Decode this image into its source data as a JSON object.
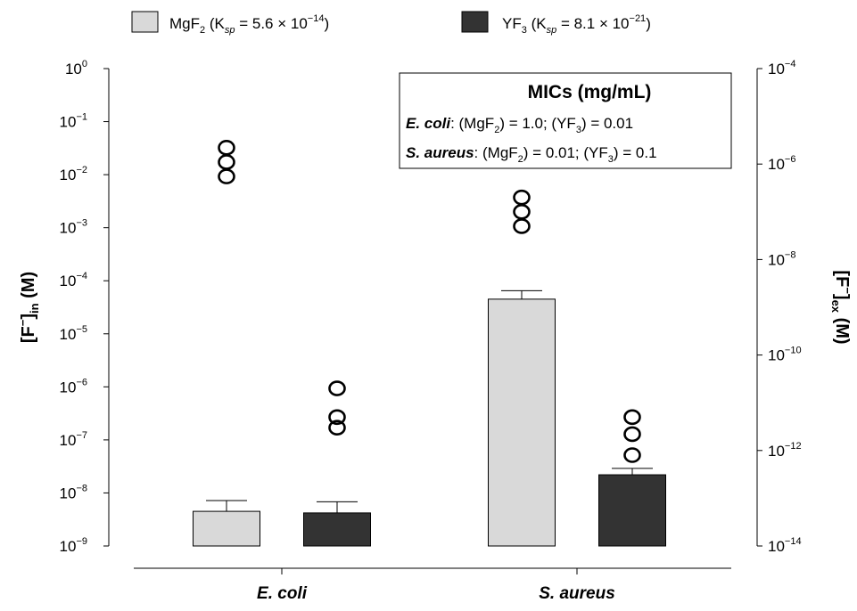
{
  "legend": [
    {
      "label": "MgF",
      "sub": "2",
      "ksp_text": "K",
      "ksp_sub": "sp",
      "value_text": " = 5.6 × 10",
      "exp": "−14",
      "color": "#d9d9d9"
    },
    {
      "label": "YF",
      "sub": "3",
      "ksp_text": "K",
      "ksp_sub": "sp",
      "value_text": " = 8.1 × 10",
      "exp": "−21",
      "color": "#333333"
    }
  ],
  "mic_box": {
    "title": "MICs (mg/mL)",
    "lines": [
      {
        "organism": "E. coli",
        "p1": ": (MgF",
        "s1": "2",
        "p2": ") = 1.0; (YF",
        "s2": "3",
        "p3": ") = 0.01"
      },
      {
        "organism": "S. aureus",
        "p1": ": (MgF",
        "s1": "2",
        "p2": ") = 0.01; (YF",
        "s2": "3",
        "p3": ") = 0.1"
      }
    ]
  },
  "left_axis_label": {
    "main": "[F",
    "sup": "−",
    "close": "]",
    "sub": "in",
    "unit": " (M)"
  },
  "right_axis_label": {
    "main": "[F",
    "sup": "−",
    "close": "]",
    "sub": "ex",
    "unit": " (M)"
  },
  "chart_data": {
    "type": "bar",
    "log_scale": true,
    "categories": [
      "E. coli",
      "S. aureus"
    ],
    "series": [
      {
        "name": "MgF2 (Ksp = 5.6 × 10−14)",
        "color": "#d9d9d9",
        "values": [
          4.5e-09,
          4.5e-05
        ],
        "error_upper": [
          7.2e-09,
          6.5e-05
        ],
        "ex_points": [
          [
            2.2e-06,
            1.1e-06,
            5.5e-07
          ],
          [
            2e-07,
            1e-07,
            5e-08
          ]
        ]
      },
      {
        "name": "YF3 (Ksp = 8.1 × 10−21)",
        "color": "#333333",
        "values": [
          4.2e-09,
          2.2e-08
        ],
        "error_upper": [
          6.8e-09,
          2.9e-08
        ],
        "ex_points": [
          [
            2e-11,
            5e-12,
            3e-12
          ],
          [
            5e-12,
            2.2e-12,
            8e-13
          ]
        ]
      }
    ],
    "y_left": {
      "min": 1e-09,
      "max": 1,
      "ticks": [
        {
          "v": 1,
          "base": "10",
          "exp": "0"
        },
        {
          "v": 0.1,
          "base": "10",
          "exp": "−1"
        },
        {
          "v": 0.01,
          "base": "10",
          "exp": "−2"
        },
        {
          "v": 0.001,
          "base": "10",
          "exp": "−3"
        },
        {
          "v": 0.0001,
          "base": "10",
          "exp": "−4"
        },
        {
          "v": 1e-05,
          "base": "10",
          "exp": "−5"
        },
        {
          "v": 1e-06,
          "base": "10",
          "exp": "−6"
        },
        {
          "v": 1e-07,
          "base": "10",
          "exp": "−7"
        },
        {
          "v": 1e-08,
          "base": "10",
          "exp": "−8"
        },
        {
          "v": 1e-09,
          "base": "10",
          "exp": "−9"
        }
      ]
    },
    "y_right": {
      "min": 1e-14,
      "max": 0.0001,
      "ticks": [
        {
          "v": 0.0001,
          "base": "10",
          "exp": "−4"
        },
        {
          "v": 1e-06,
          "base": "10",
          "exp": "−6"
        },
        {
          "v": 1e-08,
          "base": "10",
          "exp": "−8"
        },
        {
          "v": 1e-10,
          "base": "10",
          "exp": "−10"
        },
        {
          "v": 1e-12,
          "base": "10",
          "exp": "−12"
        },
        {
          "v": 1e-14,
          "base": "10",
          "exp": "−14"
        }
      ]
    },
    "marker": "o"
  }
}
